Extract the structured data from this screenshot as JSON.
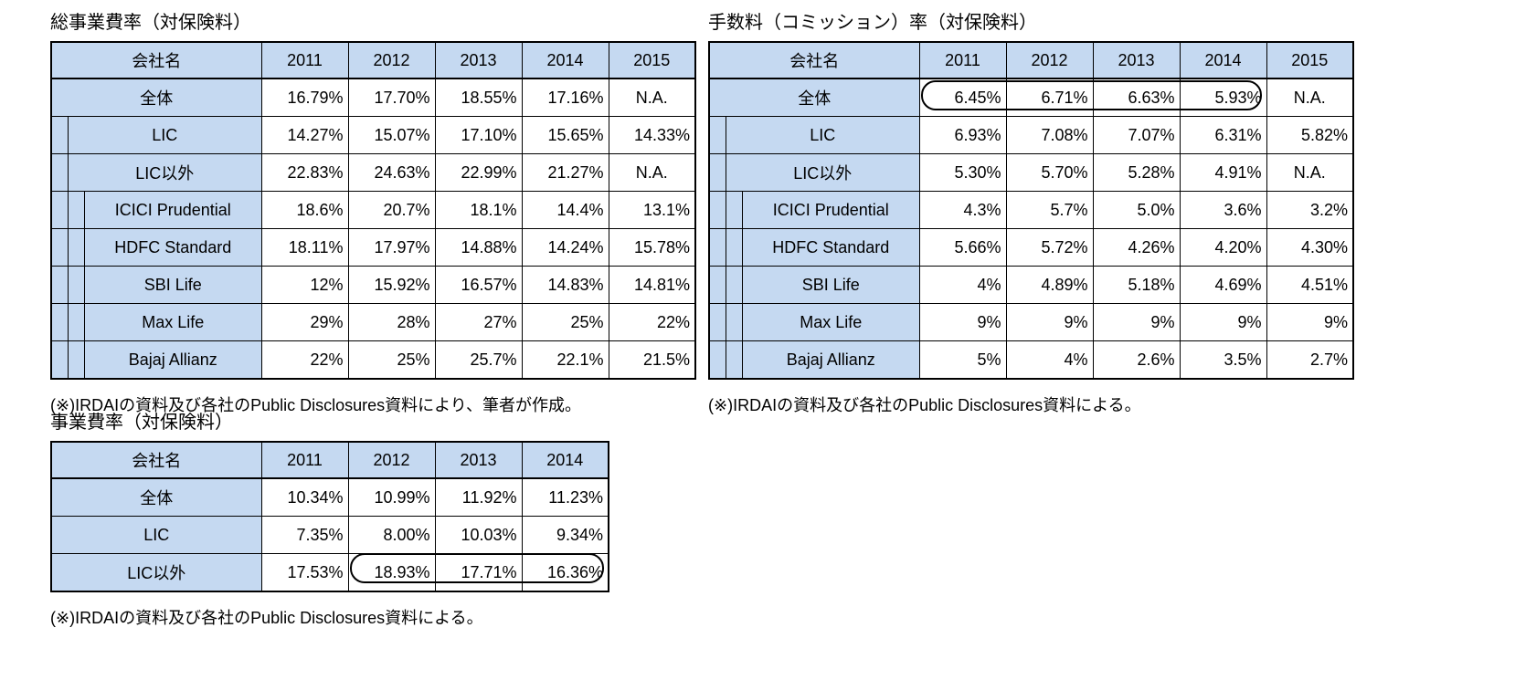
{
  "colors": {
    "header_fill": "#c5d9f1",
    "border": "#000000",
    "background": "#ffffff"
  },
  "tables": [
    {
      "id": "total-expense-ratio",
      "title": "総事業費率（対保険料）",
      "note": "(※)IRDAIの資料及び各社のPublic Disclosures資料により、筆者が作成。",
      "company_header": "会社名",
      "years": [
        "2011",
        "2012",
        "2013",
        "2014",
        "2015"
      ],
      "rows": [
        {
          "name": "全体",
          "indent": 0,
          "values": [
            "16.79%",
            "17.70%",
            "18.55%",
            "17.16%",
            "N.A."
          ]
        },
        {
          "name": "LIC",
          "indent": 1,
          "values": [
            "14.27%",
            "15.07%",
            "17.10%",
            "15.65%",
            "14.33%"
          ]
        },
        {
          "name": "LIC以外",
          "indent": 1,
          "values": [
            "22.83%",
            "24.63%",
            "22.99%",
            "21.27%",
            "N.A."
          ]
        },
        {
          "name": "ICICI Prudential",
          "indent": 2,
          "values": [
            "18.6%",
            "20.7%",
            "18.1%",
            "14.4%",
            "13.1%"
          ]
        },
        {
          "name": "HDFC Standard",
          "indent": 2,
          "values": [
            "18.11%",
            "17.97%",
            "14.88%",
            "14.24%",
            "15.78%"
          ]
        },
        {
          "name": "SBI Life",
          "indent": 2,
          "values": [
            "12%",
            "15.92%",
            "16.57%",
            "14.83%",
            "14.81%"
          ]
        },
        {
          "name": "Max Life",
          "indent": 2,
          "values": [
            "29%",
            "28%",
            "27%",
            "25%",
            "22%"
          ]
        },
        {
          "name": "Bajaj Allianz",
          "indent": 2,
          "values": [
            "22%",
            "25%",
            "25.7%",
            "22.1%",
            "21.5%"
          ]
        }
      ],
      "highlight": null
    },
    {
      "id": "commission-ratio",
      "title": "手数料（コミッション）率（対保険料）",
      "note": "(※)IRDAIの資料及び各社のPublic Disclosures資料による。",
      "company_header": "会社名",
      "years": [
        "2011",
        "2012",
        "2013",
        "2014",
        "2015"
      ],
      "rows": [
        {
          "name": "全体",
          "indent": 0,
          "values": [
            "6.45%",
            "6.71%",
            "6.63%",
            "5.93%",
            "N.A."
          ]
        },
        {
          "name": "LIC",
          "indent": 1,
          "values": [
            "6.93%",
            "7.08%",
            "7.07%",
            "6.31%",
            "5.82%"
          ]
        },
        {
          "name": "LIC以外",
          "indent": 1,
          "values": [
            "5.30%",
            "5.70%",
            "5.28%",
            "4.91%",
            "N.A."
          ]
        },
        {
          "name": "ICICI Prudential",
          "indent": 2,
          "values": [
            "4.3%",
            "5.7%",
            "5.0%",
            "3.6%",
            "3.2%"
          ]
        },
        {
          "name": "HDFC Standard",
          "indent": 2,
          "values": [
            "5.66%",
            "5.72%",
            "4.26%",
            "4.20%",
            "4.30%"
          ]
        },
        {
          "name": "SBI Life",
          "indent": 2,
          "values": [
            "4%",
            "4.89%",
            "5.18%",
            "4.69%",
            "4.51%"
          ]
        },
        {
          "name": "Max Life",
          "indent": 2,
          "values": [
            "9%",
            "9%",
            "9%",
            "9%",
            "9%"
          ]
        },
        {
          "name": "Bajaj Allianz",
          "indent": 2,
          "values": [
            "5%",
            "4%",
            "2.6%",
            "3.5%",
            "2.7%"
          ]
        }
      ],
      "highlight": {
        "row": 0,
        "col_start": 0,
        "col_end": 3
      }
    },
    {
      "id": "expense-ratio",
      "title": "事業費率（対保険料）",
      "note": "(※)IRDAIの資料及び各社のPublic Disclosures資料による。",
      "company_header": "会社名",
      "years": [
        "2011",
        "2012",
        "2013",
        "2014"
      ],
      "rows": [
        {
          "name": "全体",
          "indent": 0,
          "values": [
            "10.34%",
            "10.99%",
            "11.92%",
            "11.23%"
          ]
        },
        {
          "name": "LIC",
          "indent": 0,
          "values": [
            "7.35%",
            "8.00%",
            "10.03%",
            "9.34%"
          ]
        },
        {
          "name": "LIC以外",
          "indent": 0,
          "values": [
            "17.53%",
            "18.93%",
            "17.71%",
            "16.36%"
          ]
        }
      ],
      "highlight": {
        "row": 2,
        "col_start": 1,
        "col_end": 3
      }
    }
  ]
}
